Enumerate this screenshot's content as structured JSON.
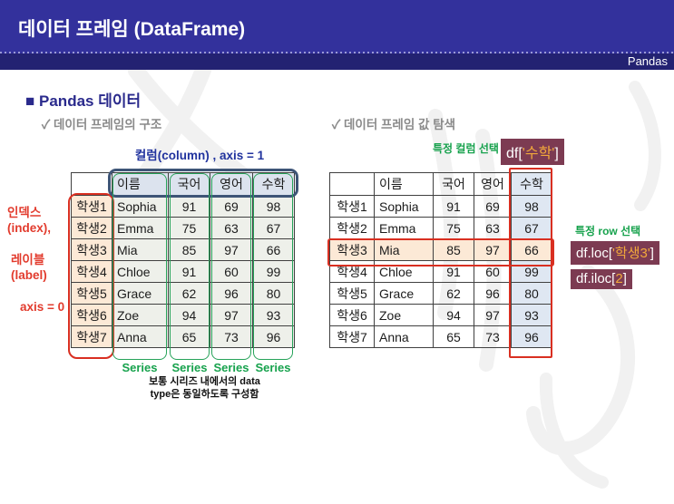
{
  "header": {
    "title": "데이터 프레임 (DataFrame)",
    "badge": "Pandas"
  },
  "section": {
    "bullet": "■",
    "title": "Pandas 데이터"
  },
  "left_panel": {
    "check": "✓",
    "subtitle": "데이터 프레임의 구조",
    "column_axis_label": "컬럼(column) , axis = 1",
    "index_annotation_line1": "인덱스",
    "index_annotation_line2": "(index),",
    "label_annotation_line1": "레이블",
    "label_annotation_line2": "(label)",
    "axis_annotation": "axis = 0",
    "series_labels": [
      "Series",
      "Series",
      "Series",
      "Series"
    ],
    "note_line1": "보통 시리즈 내에서의 data",
    "note_line2": "type은 동일하도록 구성함"
  },
  "right_panel": {
    "check": "✓",
    "subtitle": "데이터 프레임 값 탐색",
    "column_select_label": "특정 컬럼 선택",
    "column_select_code": {
      "prefix": "df[",
      "highlight": "'수학'",
      "suffix": "]"
    },
    "row_select_label": "특정 row 선택",
    "row_select_code_loc": {
      "prefix": "df.loc[",
      "highlight": "'학생3'",
      "suffix": "]"
    },
    "row_select_code_iloc": {
      "prefix": "df.iloc[",
      "highlight": "2",
      "suffix": "]"
    }
  },
  "table": {
    "headers": [
      "",
      "이름",
      "국어",
      "영어",
      "수학"
    ],
    "rows": [
      [
        "학생1",
        "Sophia",
        "91",
        "69",
        "98"
      ],
      [
        "학생2",
        "Emma",
        "75",
        "63",
        "67"
      ],
      [
        "학생3",
        "Mia",
        "85",
        "97",
        "66"
      ],
      [
        "학생4",
        "Chloe",
        "91",
        "60",
        "99"
      ],
      [
        "학생5",
        "Grace",
        "62",
        "96",
        "80"
      ],
      [
        "학생6",
        "Zoe",
        "94",
        "97",
        "93"
      ],
      [
        "학생7",
        "Anna",
        "65",
        "73",
        "96"
      ]
    ],
    "highlighted_row_index": 2,
    "highlighted_column_index": 4
  },
  "colors": {
    "title_bar": "#33319C",
    "subtitle_bar": "#232272",
    "heading_navy": "#2A2A8C",
    "annotation_red": "#E23B2D",
    "outline_red": "#D92F21",
    "outline_navy": "#3E5577",
    "series_green": "#17A24D",
    "badge_maroon": "#7C3B52",
    "badge_highlight_orange": "#F2A93B",
    "index_peach": "#FCE9D6",
    "data_cell_green_gray": "#EEF0EA",
    "header_blue_gray": "#DCE3EE",
    "highlight_column_blue": "#DFE7F2"
  }
}
